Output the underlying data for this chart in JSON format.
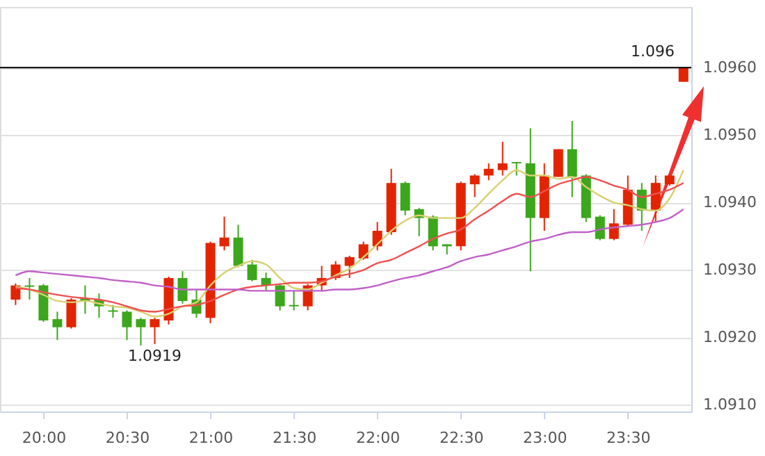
{
  "chart_data": {
    "type": "candlestick",
    "x": [
      19.8333,
      19.9167,
      20.0,
      20.0833,
      20.1667,
      20.25,
      20.3333,
      20.4167,
      20.5,
      20.5833,
      20.6667,
      20.75,
      20.8333,
      20.9167,
      21.0,
      21.0833,
      21.1667,
      21.25,
      21.3333,
      21.4167,
      21.5,
      21.5833,
      21.6667,
      21.75,
      21.8333,
      21.9167,
      22.0,
      22.0833,
      22.1667,
      22.25,
      22.3333,
      22.4167,
      22.5,
      22.5833,
      22.6667,
      22.75,
      22.8333,
      22.9167,
      23.0,
      23.0833,
      23.1667,
      23.25,
      23.3333,
      23.4167,
      23.5,
      23.5833,
      23.6667,
      23.75,
      23.8333
    ],
    "ohlc": [
      [
        1.09256,
        1.0928,
        1.09248,
        1.09277
      ],
      [
        1.09277,
        1.09288,
        1.09256,
        1.09275
      ],
      [
        1.09277,
        1.09279,
        1.09223,
        1.09225
      ],
      [
        1.09227,
        1.09238,
        1.09196,
        1.09215
      ],
      [
        1.09215,
        1.09258,
        1.09213,
        1.09256
      ],
      [
        1.09258,
        1.09277,
        1.09235,
        1.09254
      ],
      [
        1.09256,
        1.09265,
        1.09229,
        1.09246
      ],
      [
        1.0924,
        1.09248,
        1.09229,
        1.09238
      ],
      [
        1.09238,
        1.0924,
        1.09196,
        1.09215
      ],
      [
        1.09227,
        1.09229,
        1.09188,
        1.09215
      ],
      [
        1.09215,
        1.09229,
        1.0919,
        1.09227
      ],
      [
        1.09225,
        1.0929,
        1.09219,
        1.09288
      ],
      [
        1.09288,
        1.09298,
        1.0925,
        1.09254
      ],
      [
        1.09256,
        1.09271,
        1.09229,
        1.09235
      ],
      [
        1.09229,
        1.09342,
        1.09221,
        1.0934
      ],
      [
        1.09335,
        1.09379,
        1.09329,
        1.09348
      ],
      [
        1.09348,
        1.09367,
        1.09304,
        1.09306
      ],
      [
        1.09308,
        1.09315,
        1.09283,
        1.09285
      ],
      [
        1.09288,
        1.09296,
        1.09269,
        1.09277
      ],
      [
        1.09277,
        1.09279,
        1.0924,
        1.09246
      ],
      [
        1.09248,
        1.09269,
        1.0924,
        1.09246
      ],
      [
        1.09246,
        1.09279,
        1.0924,
        1.09277
      ],
      [
        1.09277,
        1.09306,
        1.09269,
        1.09288
      ],
      [
        1.09288,
        1.09313,
        1.09285,
        1.09308
      ],
      [
        1.09306,
        1.09321,
        1.09288,
        1.09319
      ],
      [
        1.09317,
        1.09342,
        1.09315,
        1.09338
      ],
      [
        1.09335,
        1.09371,
        1.09329,
        1.09358
      ],
      [
        1.09356,
        1.0945,
        1.09352,
        1.09429
      ],
      [
        1.09429,
        1.09431,
        1.09381,
        1.09388
      ],
      [
        1.0939,
        1.09392,
        1.0935,
        1.09377
      ],
      [
        1.09379,
        1.09381,
        1.09329,
        1.09335
      ],
      [
        1.09338,
        1.09338,
        1.09323,
        1.09335
      ],
      [
        1.09335,
        1.09431,
        1.09329,
        1.09429
      ],
      [
        1.09427,
        1.09442,
        1.09408,
        1.0944
      ],
      [
        1.0944,
        1.09458,
        1.09433,
        1.0945
      ],
      [
        1.09448,
        1.0949,
        1.0944,
        1.09458
      ],
      [
        1.0946,
        1.0946,
        1.0944,
        1.09458
      ],
      [
        1.09458,
        1.0951,
        1.09298,
        1.09377
      ],
      [
        1.09377,
        1.09458,
        1.09358,
        1.0944
      ],
      [
        1.09438,
        1.09479,
        1.09438,
        1.09479
      ],
      [
        1.09479,
        1.09521,
        1.09408,
        1.09438
      ],
      [
        1.0944,
        1.09442,
        1.09371,
        1.09377
      ],
      [
        1.09379,
        1.09381,
        1.09344,
        1.09346
      ],
      [
        1.09346,
        1.0939,
        1.09344,
        1.09369
      ],
      [
        1.09367,
        1.0944,
        1.09365,
        1.09419
      ],
      [
        1.09419,
        1.09429,
        1.09358,
        1.09388
      ],
      [
        1.09388,
        1.0944,
        1.09371,
        1.09429
      ],
      [
        1.09427,
        1.09442,
        1.09425,
        1.0944
      ],
      [
        1.09579,
        1.096,
        1.09579,
        1.096
      ]
    ],
    "colors": [
      "#e32400",
      "#3ca61c",
      "#3ca61c",
      "#3ca61c",
      "#e32400",
      "#3ca61c",
      "#3ca61c",
      "#3ca61c",
      "#3ca61c",
      "#3ca61c",
      "#e32400",
      "#e32400",
      "#3ca61c",
      "#3ca61c",
      "#e32400",
      "#e32400",
      "#3ca61c",
      "#3ca61c",
      "#3ca61c",
      "#3ca61c",
      "#3ca61c",
      "#e32400",
      "#e32400",
      "#e32400",
      "#e32400",
      "#e32400",
      "#e32400",
      "#e32400",
      "#3ca61c",
      "#3ca61c",
      "#3ca61c",
      "#3ca61c",
      "#e32400",
      "#e32400",
      "#e32400",
      "#e32400",
      "#3ca61c",
      "#3ca61c",
      "#e32400",
      "#e32400",
      "#3ca61c",
      "#3ca61c",
      "#3ca61c",
      "#e32400",
      "#e32400",
      "#3ca61c",
      "#e32400",
      "#e32400",
      "#e32400"
    ],
    "series": [
      {
        "type": "line",
        "color": "#d8d070",
        "values": [
          1.09275,
          1.09271,
          1.09263,
          1.09254,
          1.09252,
          1.09254,
          1.0925,
          1.09246,
          1.09244,
          1.09238,
          1.09231,
          1.09235,
          1.09246,
          1.09252,
          1.09277,
          1.09296,
          1.09306,
          1.09313,
          1.09308,
          1.09288,
          1.09273,
          1.09271,
          1.09281,
          1.09292,
          1.09302,
          1.09319,
          1.09338,
          1.09358,
          1.09373,
          1.09381,
          1.09377,
          1.09377,
          1.09377,
          1.09392,
          1.09413,
          1.09433,
          1.09448,
          1.0944,
          1.0944,
          1.09435,
          1.09438,
          1.09423,
          1.0941,
          1.094,
          1.09396,
          1.0939,
          1.09388,
          1.09406,
          1.09448
        ]
      },
      {
        "type": "line",
        "color": "#f05050",
        "values": [
          1.09273,
          1.09271,
          1.09267,
          1.09263,
          1.0926,
          1.09258,
          1.09256,
          1.09252,
          1.09246,
          1.0924,
          1.09238,
          1.09242,
          1.09246,
          1.09248,
          1.09254,
          1.09263,
          1.09271,
          1.09275,
          1.09277,
          1.09279,
          1.09281,
          1.09281,
          1.09283,
          1.0929,
          1.09294,
          1.093,
          1.0931,
          1.09315,
          1.09325,
          1.09335,
          1.09346,
          1.09354,
          1.0936,
          1.09375,
          1.09388,
          1.09402,
          1.09413,
          1.09408,
          1.09417,
          1.09427,
          1.09433,
          1.09438,
          1.09433,
          1.09425,
          1.09419,
          1.09408,
          1.09413,
          1.09419,
          1.09429
        ]
      },
      {
        "type": "line",
        "color": "#c060c8",
        "values": [
          1.09292,
          1.09298,
          1.09296,
          1.09294,
          1.09292,
          1.0929,
          1.09288,
          1.09285,
          1.09283,
          1.09281,
          1.09277,
          1.09275,
          1.09271,
          1.09271,
          1.09271,
          1.09271,
          1.09271,
          1.09269,
          1.09269,
          1.09269,
          1.09269,
          1.09269,
          1.09269,
          1.09271,
          1.09271,
          1.09273,
          1.09277,
          1.09283,
          1.09288,
          1.09292,
          1.09298,
          1.09304,
          1.09313,
          1.09319,
          1.09323,
          1.09329,
          1.09335,
          1.09342,
          1.09346,
          1.09352,
          1.09356,
          1.09356,
          1.0936,
          1.09363,
          1.09365,
          1.09367,
          1.09371,
          1.09377,
          1.0939
        ]
      }
    ],
    "xlim": [
      19.74,
      23.88
    ],
    "xticks": [
      {
        "value": 20,
        "label": "20:00"
      },
      {
        "value": 20.5,
        "label": "20:30"
      },
      {
        "value": 21,
        "label": "21:00"
      },
      {
        "value": 21.5,
        "label": "21:30"
      },
      {
        "value": 22,
        "label": "22:00"
      },
      {
        "value": 22.5,
        "label": "22:30"
      },
      {
        "value": 23,
        "label": "23:00"
      },
      {
        "value": 23.5,
        "label": "23:30"
      }
    ],
    "ylim": [
      1.0909,
      1.0969
    ],
    "yticks": [
      {
        "value": 1.091,
        "label": "1.0910"
      },
      {
        "value": 1.092,
        "label": "1.0920"
      },
      {
        "value": 1.093,
        "label": "1.0930"
      },
      {
        "value": 1.094,
        "label": "1.0940"
      },
      {
        "value": 1.095,
        "label": "1.0950"
      },
      {
        "value": 1.096,
        "label": "1.0960"
      }
    ],
    "ref_lines": [
      {
        "axis": "y",
        "value": 1.096,
        "label": "1.096",
        "color": "#000000"
      }
    ],
    "annotations": [
      {
        "text": "1.0919",
        "x": 20.6667,
        "y": 1.0919
      }
    ],
    "grid": "y"
  }
}
